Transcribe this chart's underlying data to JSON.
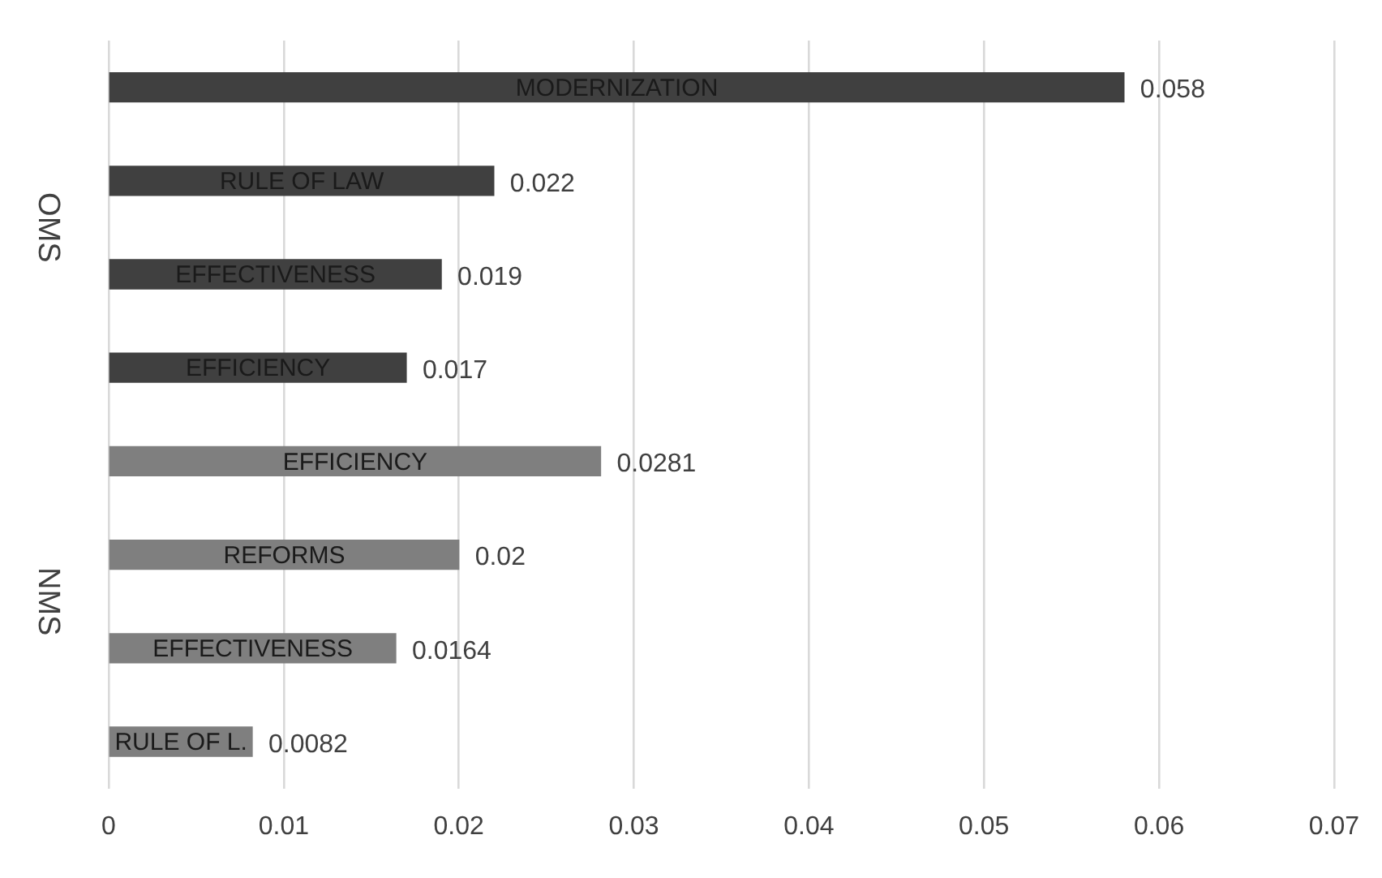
{
  "chart_data": {
    "type": "bar",
    "orientation": "horizontal",
    "categories": [
      "MODERNIZATION",
      "RULE OF LAW",
      "EFFECTIVENESS",
      "EFFICIENCY",
      "EFFICIENCY",
      "REFORMS",
      "EFFECTIVENESS",
      "RULE OF L."
    ],
    "values": [
      0.058,
      0.022,
      0.019,
      0.017,
      0.0281,
      0.02,
      0.0164,
      0.0082
    ],
    "colors": [
      "#404040",
      "#404040",
      "#404040",
      "#404040",
      "#7f7f7f",
      "#7f7f7f",
      "#7f7f7f",
      "#7f7f7f"
    ],
    "xlim": [
      0,
      0.07
    ],
    "xticks": [
      0,
      0.01,
      0.02,
      0.03,
      0.04,
      0.05,
      0.06,
      0.07
    ],
    "grid": "x",
    "tick_labels": "x",
    "data_labels": true,
    "annotations": [
      "OMS",
      "NMS"
    ]
  }
}
